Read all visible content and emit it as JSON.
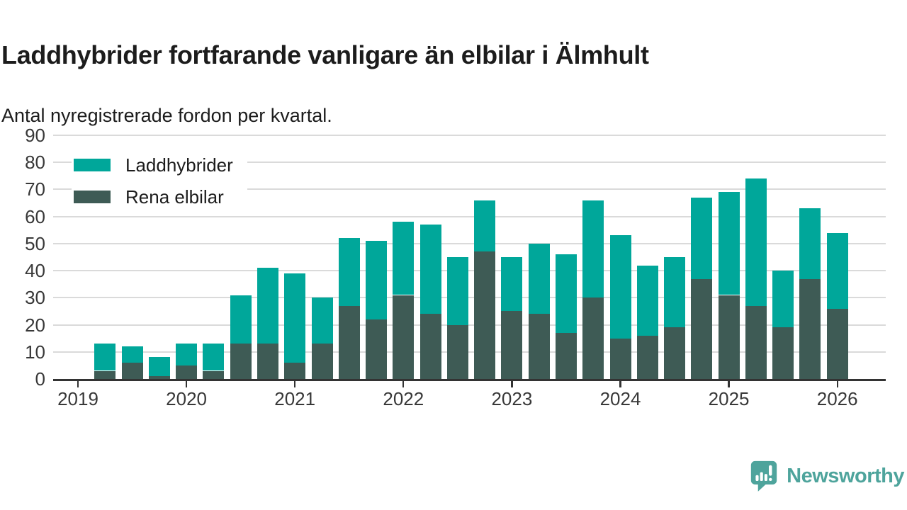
{
  "title": "Laddhybrider fortfarande vanligare än elbilar i Älmhult",
  "subtitle": "Antal nyregistrerade fordon per kvartal.",
  "colors": {
    "laddhybrider": "#00a79a",
    "rena_elbilar": "#3e5b55",
    "grid": "#dadada",
    "axis": "#333333",
    "text": "#1c1c1c",
    "axis_text": "#383838",
    "brand": "#4ea49c",
    "background": "#ffffff"
  },
  "legend": {
    "items": [
      {
        "label": "Laddhybrider",
        "color": "#00a79a"
      },
      {
        "label": "Rena elbilar",
        "color": "#3e5b55"
      }
    ]
  },
  "chart_data": {
    "type": "bar",
    "stacked": true,
    "title": "Laddhybrider fortfarande vanligare än elbilar i Älmhult",
    "subtitle": "Antal nyregistrerade fordon per kvartal.",
    "categories": [
      "2019 Q2",
      "2019 Q3",
      "2019 Q4",
      "2020 Q1",
      "2020 Q2",
      "2020 Q3",
      "2020 Q4",
      "2021 Q1",
      "2021 Q2",
      "2021 Q3",
      "2021 Q4",
      "2022 Q1",
      "2022 Q2",
      "2022 Q3",
      "2022 Q4",
      "2023 Q1",
      "2023 Q2",
      "2023 Q3",
      "2023 Q4",
      "2024 Q1",
      "2024 Q2",
      "2024 Q3",
      "2024 Q4",
      "2025 Q1",
      "2025 Q2",
      "2025 Q3",
      "2025 Q4",
      "2026 Q1"
    ],
    "series": [
      {
        "name": "Laddhybrider",
        "color": "#00a79a",
        "values": [
          10,
          6,
          7,
          8,
          10,
          18,
          28,
          33,
          17,
          25,
          29,
          27,
          33,
          25,
          19,
          20,
          26,
          29,
          36,
          38,
          26,
          26,
          30,
          38,
          47,
          21,
          26,
          28
        ]
      },
      {
        "name": "Rena elbilar",
        "color": "#3e5b55",
        "values": [
          3,
          6,
          1,
          5,
          3,
          13,
          13,
          6,
          13,
          27,
          22,
          31,
          24,
          20,
          47,
          25,
          24,
          17,
          30,
          15,
          16,
          19,
          37,
          31,
          27,
          19,
          37,
          26
        ]
      }
    ],
    "stack_order": [
      "Rena elbilar",
      "Laddhybrider"
    ],
    "totals": [
      13,
      12,
      8,
      13,
      13,
      31,
      41,
      39,
      30,
      52,
      51,
      58,
      57,
      45,
      66,
      45,
      50,
      46,
      66,
      53,
      42,
      45,
      67,
      69,
      74,
      40,
      63,
      54
    ],
    "xlabel": "",
    "ylabel": "",
    "x_tick_labels": [
      "2019",
      "2020",
      "2021",
      "2022",
      "2023",
      "2024",
      "2025",
      "2026"
    ],
    "y_ticks": [
      0,
      10,
      20,
      30,
      40,
      50,
      60,
      70,
      80,
      90
    ],
    "ylim": [
      0,
      90
    ],
    "grid": true,
    "legend_position": "top-left"
  },
  "footer": {
    "brand": "Newsworthy"
  }
}
